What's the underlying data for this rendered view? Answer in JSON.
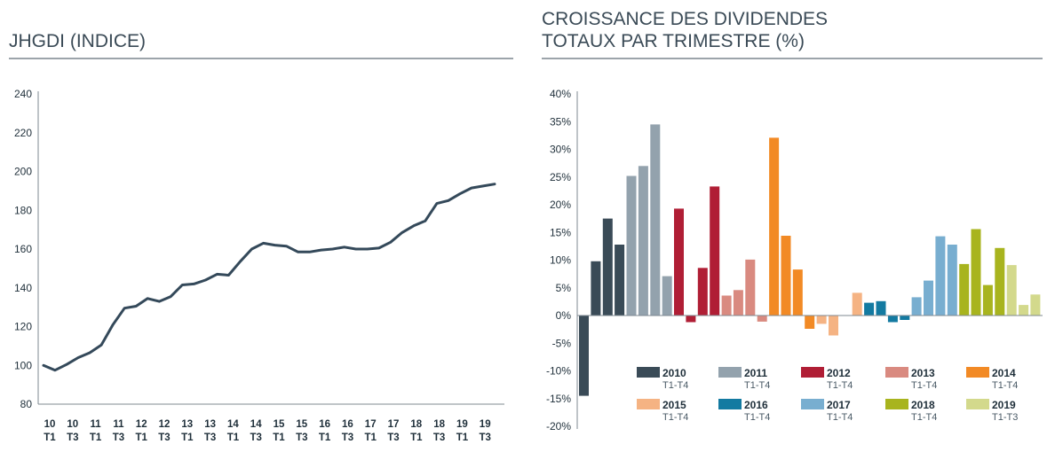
{
  "chart_data": [
    {
      "type": "line",
      "title": "JHGDI (INDICE)",
      "ylim": [
        80,
        240
      ],
      "yticks": [
        80,
        100,
        120,
        140,
        160,
        180,
        200,
        220,
        240
      ],
      "x_tick_labels": [
        [
          "10",
          "T1"
        ],
        [
          "10",
          "T3"
        ],
        [
          "11",
          "T1"
        ],
        [
          "11",
          "T3"
        ],
        [
          "12",
          "T1"
        ],
        [
          "12",
          "T3"
        ],
        [
          "13",
          "T1"
        ],
        [
          "13",
          "T3"
        ],
        [
          "14",
          "T1"
        ],
        [
          "14",
          "T3"
        ],
        [
          "15",
          "T1"
        ],
        [
          "15",
          "T3"
        ],
        [
          "16",
          "T1"
        ],
        [
          "16",
          "T3"
        ],
        [
          "17",
          "T1"
        ],
        [
          "17",
          "T3"
        ],
        [
          "18",
          "T1"
        ],
        [
          "18",
          "T3"
        ],
        [
          "19",
          "T1"
        ],
        [
          "19",
          "T3"
        ]
      ],
      "color": "#34495a",
      "values": [
        100,
        97.5,
        100.5,
        104,
        106.5,
        110.5,
        121,
        129.5,
        130.5,
        134.5,
        133,
        135.5,
        141.5,
        142,
        144,
        147,
        146.5,
        153.5,
        160,
        163,
        162,
        161.5,
        158.5,
        158.5,
        159.5,
        160,
        161,
        160,
        160,
        160.5,
        163.5,
        168.5,
        172,
        174.5,
        183.5,
        185,
        188.5,
        191.5,
        192.5,
        193.5
      ]
    },
    {
      "type": "bar",
      "title": "CROISSANCE DES DIVIDENDES TOTAUX PAR TRIMESTRE (%)",
      "title_lines": [
        "CROISSANCE DES DIVIDENDES",
        "TOTAUX PAR TRIMESTRE (%)"
      ],
      "ylim": [
        -20,
        40
      ],
      "yticks": [
        "-20%",
        "-15%",
        "-10%",
        "-5%",
        "0%",
        "5%",
        "10%",
        "15%",
        "20%",
        "25%",
        "30%",
        "35%",
        "40%"
      ],
      "series": [
        {
          "name": "2010",
          "period": "T1-T4",
          "color": "#3a4b57",
          "values": [
            -14.5,
            9.8,
            17.5,
            12.8
          ]
        },
        {
          "name": "2011",
          "period": "T1-T4",
          "color": "#93a2ad",
          "values": [
            25.2,
            27,
            34.5,
            7.1
          ]
        },
        {
          "name": "2012",
          "period": "T1-T4",
          "color": "#b01e35",
          "values": [
            19.3,
            -1.2,
            8.6,
            23.3
          ]
        },
        {
          "name": "2013",
          "period": "T1-T4",
          "color": "#d98a80",
          "values": [
            3.6,
            4.6,
            10.1,
            -1.1
          ]
        },
        {
          "name": "2014",
          "period": "T1-T4",
          "color": "#f28a25",
          "values": [
            32.1,
            14.4,
            8.3,
            -2.4
          ]
        },
        {
          "name": "2015",
          "period": "T1-T4",
          "color": "#f5b383",
          "values": [
            -1.5,
            -3.6,
            0,
            4.1
          ]
        },
        {
          "name": "2016",
          "period": "T1-T4",
          "color": "#137aa1",
          "values": [
            2.3,
            2.6,
            -1.2,
            -0.8
          ]
        },
        {
          "name": "2017",
          "period": "T1-T4",
          "color": "#78aed0",
          "values": [
            3.3,
            6.3,
            14.3,
            12.8
          ]
        },
        {
          "name": "2018",
          "period": "T1-T4",
          "color": "#a8b41e",
          "values": [
            9.3,
            15.6,
            5.5,
            12.2
          ]
        },
        {
          "name": "2019",
          "period": "T1-T3",
          "color": "#d3d98c",
          "values": [
            9.1,
            1.9,
            3.8
          ]
        }
      ]
    }
  ]
}
